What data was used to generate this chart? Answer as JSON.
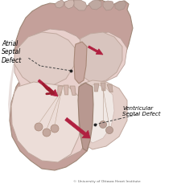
{
  "bg_color": "#ffffff",
  "heart_outer_color": "#c4a09a",
  "heart_mid_color": "#d4b0aa",
  "heart_light_color": "#e8d0cc",
  "heart_pale_color": "#ecddd8",
  "vessel_color": "#c8a8a2",
  "vessel_dark_color": "#b89090",
  "inner_pale": "#f0e0da",
  "septum_color": "#c0a09a",
  "shadow_color": "#b89090",
  "arrow_color": "#9b1c2e",
  "arrow_fill": "#b02040",
  "dot_color": "#222222",
  "label_color": "#000000",
  "line_color": "#444444",
  "copyright_color": "#666666",
  "label_atrial": "Atrial\nSeptal\nDefect",
  "label_ventricular": "Ventricular\nSeptal Defect",
  "copyright": "© University of Ottawa Heart Institute",
  "figsize": [
    2.2,
    2.39
  ],
  "dpi": 100
}
